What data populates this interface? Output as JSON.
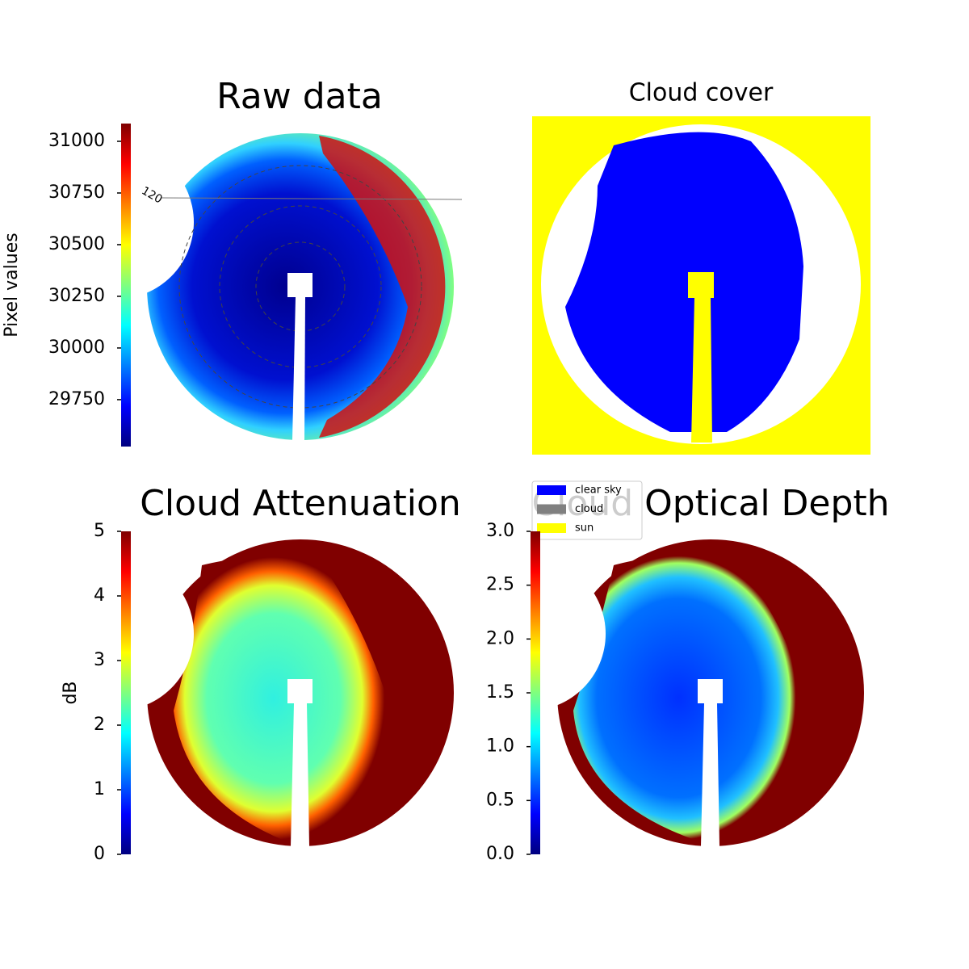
{
  "chart_data": [
    {
      "type": "image",
      "title": "Raw data",
      "annotations": [
        "120"
      ],
      "colorbar": {
        "label": "Pixel values",
        "colormap": "jet",
        "lim": [
          29523,
          31086
        ],
        "ticks": [
          29750,
          30000,
          30250,
          30500,
          30750,
          31000
        ]
      }
    },
    {
      "type": "image",
      "title": "Cloud cover",
      "legend": [
        {
          "name": "clear sky",
          "color": "#0000ff"
        },
        {
          "name": "cloud",
          "color": "#808080"
        },
        {
          "name": "sun",
          "color": "#ffff00"
        }
      ]
    },
    {
      "type": "image",
      "title": "Cloud Attenuation",
      "colorbar": {
        "label": "dB",
        "colormap": "jet",
        "lim": [
          0,
          5
        ],
        "ticks": [
          0,
          1,
          2,
          3,
          4,
          5
        ]
      }
    },
    {
      "type": "image",
      "title": "Cloud Optical Depth",
      "colorbar": {
        "colormap": "jet",
        "lim": [
          0,
          3
        ],
        "ticks": [
          {
            "value": 0,
            "label": "0.0"
          },
          {
            "value": 0.5,
            "label": "0.5"
          },
          {
            "value": 1,
            "label": "1.0"
          },
          {
            "value": 1.5,
            "label": "1.5"
          },
          {
            "value": 2,
            "label": "2.0"
          },
          {
            "value": 2.5,
            "label": "2.5"
          },
          {
            "value": 3,
            "label": "3.0"
          }
        ]
      }
    }
  ]
}
